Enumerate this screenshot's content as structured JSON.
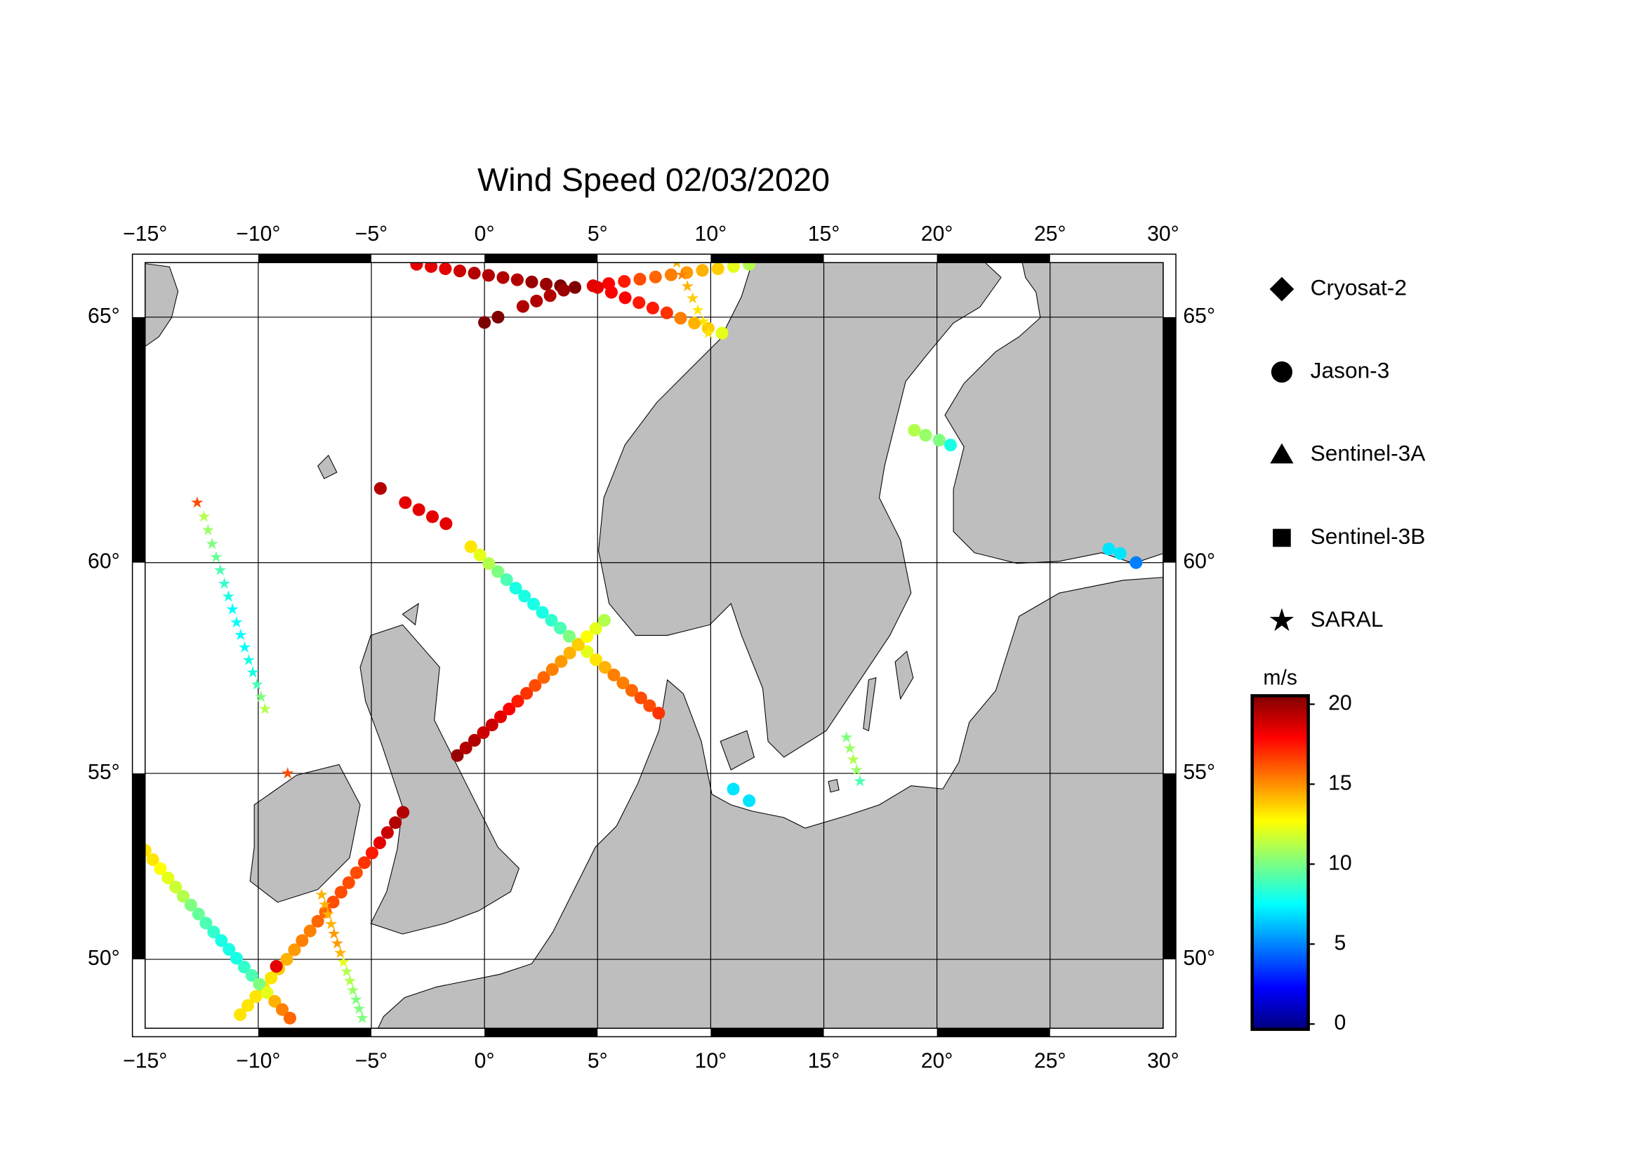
{
  "chart_data": {
    "type": "map",
    "title": "Wind Speed 02/03/2020",
    "xlim": [
      -15,
      30
    ],
    "ylim": [
      48,
      66
    ],
    "xticks": [
      {
        "value": -15,
        "label": "−15°"
      },
      {
        "value": -10,
        "label": "−10°"
      },
      {
        "value": -5,
        "label": "−5°"
      },
      {
        "value": 0,
        "label": "0°"
      },
      {
        "value": 5,
        "label": "5°"
      },
      {
        "value": 10,
        "label": "10°"
      },
      {
        "value": 15,
        "label": "15°"
      },
      {
        "value": 20,
        "label": "20°"
      },
      {
        "value": 25,
        "label": "25°"
      },
      {
        "value": 30,
        "label": "30°"
      }
    ],
    "yticks": [
      {
        "value": 50,
        "label": "50°"
      },
      {
        "value": 55,
        "label": "55°"
      },
      {
        "value": 60,
        "label": "60°"
      },
      {
        "value": 65,
        "label": "65°"
      }
    ],
    "grid": true,
    "legend": [
      {
        "label": "Cryosat-2",
        "marker": "diamond"
      },
      {
        "label": "Jason-3",
        "marker": "circle"
      },
      {
        "label": "Sentinel-3A",
        "marker": "triangle"
      },
      {
        "label": "Sentinel-3B",
        "marker": "square"
      },
      {
        "label": "SARAL",
        "marker": "star"
      }
    ],
    "colorbar": {
      "label": "m/s",
      "lim": [
        0,
        20
      ],
      "ticks": [
        0,
        5,
        10,
        15,
        20
      ],
      "colors": [
        "#00007f",
        "#0000ff",
        "#007fff",
        "#00ffff",
        "#7fff7f",
        "#ffff00",
        "#ff7f00",
        "#ff0000",
        "#7f0000"
      ]
    },
    "tracks": [
      {
        "mission": "Jason-3",
        "lon": [
          -3,
          -2.36,
          -1.73,
          -1.09,
          -0.45,
          0.18,
          0.82,
          1.45,
          2.09,
          2.73,
          3.36,
          4.0
        ],
        "lat": [
          65.97,
          65.93,
          65.89,
          65.85,
          65.81,
          65.77,
          65.73,
          65.69,
          65.65,
          65.61,
          65.58,
          65.55
        ],
        "values": [
          18,
          18,
          18,
          18.5,
          19,
          19,
          19,
          19,
          19.5,
          19.5,
          20,
          20
        ]
      },
      {
        "mission": "Jason-3",
        "lon": [
          0,
          0.6,
          1.7,
          2.3,
          2.9,
          3.5
        ],
        "lat": [
          64.9,
          65.0,
          65.2,
          65.3,
          65.4,
          65.5
        ],
        "values": [
          20,
          20,
          19,
          19,
          19,
          19.5
        ]
      },
      {
        "mission": "Jason-3",
        "lon": [
          4.8,
          5.49,
          6.18,
          6.87,
          7.56,
          8.25,
          8.94,
          9.63,
          10.32,
          11.01,
          11.7
        ],
        "lat": [
          65.58,
          65.62,
          65.66,
          65.7,
          65.74,
          65.78,
          65.82,
          65.86,
          65.89,
          65.93,
          65.97
        ],
        "values": [
          18,
          17.5,
          17,
          16,
          15.5,
          15,
          14.5,
          14,
          13.5,
          12,
          11
        ]
      },
      {
        "mission": "Jason-3",
        "lon": [
          5,
          5.61,
          6.22,
          6.83,
          7.44,
          8.06,
          8.67,
          9.28,
          9.89,
          10.5
        ],
        "lat": [
          65.55,
          65.46,
          65.36,
          65.27,
          65.17,
          65.08,
          64.98,
          64.89,
          64.79,
          64.7
        ],
        "values": [
          18,
          17.5,
          17.5,
          17,
          17,
          16.5,
          15,
          14,
          13.5,
          12
        ]
      },
      {
        "mission": "Jason-3",
        "lon": [
          -4.6,
          -3.5,
          -2.9,
          -2.3,
          -1.7
        ],
        "lat": [
          61.6,
          61.3,
          61.15,
          61.0,
          60.85
        ],
        "values": [
          19,
          18,
          18,
          18,
          18
        ]
      },
      {
        "mission": "Jason-3",
        "lon": [
          -0.6,
          -0.2,
          0.19,
          0.59,
          0.98,
          1.38,
          1.77,
          2.17,
          2.56,
          2.96,
          3.35,
          3.75,
          4.14,
          4.54,
          4.93,
          5.33,
          5.72,
          6.12,
          6.51,
          6.91,
          7.3,
          7.7
        ],
        "lat": [
          60.35,
          60.17,
          59.98,
          59.8,
          59.62,
          59.43,
          59.25,
          59.07,
          58.88,
          58.7,
          58.52,
          58.33,
          58.15,
          57.97,
          57.78,
          57.6,
          57.42,
          57.23,
          57.05,
          56.87,
          56.68,
          56.5
        ],
        "values": [
          13,
          12,
          11,
          10,
          9,
          8,
          8,
          8,
          8,
          8.5,
          9,
          10,
          11,
          12,
          13,
          14,
          15,
          15,
          15.5,
          16,
          16,
          16.5
        ]
      },
      {
        "mission": "Jason-3",
        "lon": [
          -1.2,
          -0.82,
          -0.44,
          -0.05,
          0.33,
          0.71,
          1.09,
          1.47,
          1.86,
          2.24,
          2.62,
          3.0,
          3.39,
          3.77,
          4.15,
          4.53,
          4.92,
          5.3
        ],
        "lat": [
          55.45,
          55.64,
          55.83,
          56.02,
          56.21,
          56.41,
          56.6,
          56.79,
          56.98,
          57.17,
          57.36,
          57.55,
          57.74,
          57.94,
          58.13,
          58.32,
          58.51,
          58.7
        ],
        "values": [
          19.5,
          19,
          19,
          18.5,
          18.5,
          18,
          17.5,
          17,
          16.5,
          16,
          15.5,
          15,
          14.5,
          14,
          13.5,
          12.5,
          12,
          11
        ]
      },
      {
        "mission": "Jason-3",
        "lon": [
          19,
          19.5,
          20.1,
          20.6
        ],
        "lat": [
          62.8,
          62.7,
          62.6,
          62.5
        ],
        "values": [
          11,
          10.5,
          10,
          8
        ]
      },
      {
        "mission": "Jason-3",
        "lon": [
          27.6,
          28.1,
          28.8
        ],
        "lat": [
          60.3,
          60.2,
          60.0
        ],
        "values": [
          7,
          7,
          5
        ]
      },
      {
        "mission": "Jason-3",
        "lon": [
          11,
          11.7
        ],
        "lat": [
          54.6,
          54.3
        ],
        "values": [
          7,
          7
        ]
      },
      {
        "mission": "Jason-3",
        "lon": [
          -10.8,
          -10.46,
          -10.11,
          -9.77,
          -9.43,
          -9.09,
          -8.74,
          -8.4,
          -8.06,
          -7.71,
          -7.37,
          -7.03,
          -6.69,
          -6.34,
          -6.0,
          -5.66,
          -5.31,
          -4.97,
          -4.63,
          -4.29,
          -3.94,
          -3.6
        ],
        "lat": [
          48.4,
          48.67,
          48.93,
          49.2,
          49.47,
          49.73,
          50.0,
          50.27,
          50.53,
          50.8,
          51.07,
          51.33,
          51.6,
          51.87,
          52.13,
          52.4,
          52.67,
          52.93,
          53.2,
          53.47,
          53.73,
          54.0
        ],
        "values": [
          13,
          13,
          13,
          13,
          13,
          13.5,
          14,
          14.5,
          15,
          15,
          15.5,
          15.5,
          16,
          16,
          16,
          16,
          16.5,
          17,
          18,
          18.5,
          19,
          19
        ]
      },
      {
        "mission": "Jason-3",
        "lon": [
          -9.2
        ],
        "lat": [
          49.8
        ],
        "values": [
          18
        ]
      },
      {
        "mission": "Jason-3",
        "lon": [
          -15,
          -14.66,
          -14.33,
          -13.99,
          -13.65,
          -13.32,
          -12.98,
          -12.64,
          -12.31,
          -11.97,
          -11.63,
          -11.29,
          -10.96,
          -10.62,
          -10.28,
          -9.95,
          -9.61,
          -9.27,
          -8.94,
          -8.6
        ],
        "lat": [
          53.0,
          52.75,
          52.51,
          52.26,
          52.01,
          51.76,
          51.52,
          51.27,
          51.02,
          50.77,
          50.53,
          50.28,
          50.03,
          49.78,
          49.54,
          49.29,
          49.04,
          48.79,
          48.55,
          48.3
        ],
        "values": [
          13,
          13,
          12.5,
          12,
          11.5,
          11,
          10,
          9.5,
          9,
          8.5,
          8,
          8,
          8,
          8.5,
          9,
          10,
          12,
          14,
          15,
          15.5
        ]
      },
      {
        "mission": "SARAL",
        "lon": [
          -12.7,
          -12.4,
          -12.22,
          -12.04,
          -11.86,
          -11.68,
          -11.5,
          -11.32,
          -11.14,
          -10.96,
          -10.78,
          -10.6,
          -10.42,
          -10.24,
          -10.06,
          -9.88,
          -9.7
        ],
        "lat": [
          61.3,
          61.0,
          60.71,
          60.41,
          60.12,
          59.83,
          59.53,
          59.24,
          58.95,
          58.65,
          58.36,
          58.07,
          57.77,
          57.48,
          57.19,
          56.89,
          56.6
        ],
        "values": [
          16,
          11,
          10.5,
          10,
          9.5,
          9,
          8.5,
          8,
          7.5,
          7.5,
          7.5,
          7.5,
          8,
          8,
          9,
          10,
          11
        ]
      },
      {
        "mission": "SARAL",
        "lon": [
          -8.7
        ],
        "lat": [
          55.0
        ],
        "values": [
          16
        ]
      },
      {
        "mission": "SARAL",
        "lon": [
          -7.2,
          -7.06,
          -6.92,
          -6.78,
          -6.65,
          -6.51,
          -6.37,
          -6.23,
          -6.09,
          -5.95,
          -5.82,
          -5.68,
          -5.54,
          -5.4
        ],
        "lat": [
          51.8,
          51.53,
          51.26,
          50.99,
          50.72,
          50.45,
          50.18,
          49.92,
          49.65,
          49.38,
          49.11,
          48.84,
          48.57,
          48.3
        ],
        "values": [
          14,
          14,
          14,
          14,
          14.5,
          14.5,
          14,
          12,
          11,
          11,
          10.5,
          10,
          10,
          10
        ]
      },
      {
        "mission": "SARAL",
        "lon": [
          16,
          16.15,
          16.3,
          16.45,
          16.6
        ],
        "lat": [
          55.9,
          55.63,
          55.35,
          55.08,
          54.8
        ],
        "values": [
          10,
          10.5,
          11,
          10.5,
          9
        ]
      },
      {
        "mission": "SARAL",
        "lon": [
          8.5,
          8.73,
          8.97,
          9.2,
          9.43,
          9.67,
          9.9
        ],
        "lat": [
          66.0,
          65.78,
          65.57,
          65.35,
          65.13,
          64.92,
          64.7
        ],
        "values": [
          14,
          15,
          14,
          13.5,
          13,
          13,
          13
        ]
      }
    ]
  }
}
